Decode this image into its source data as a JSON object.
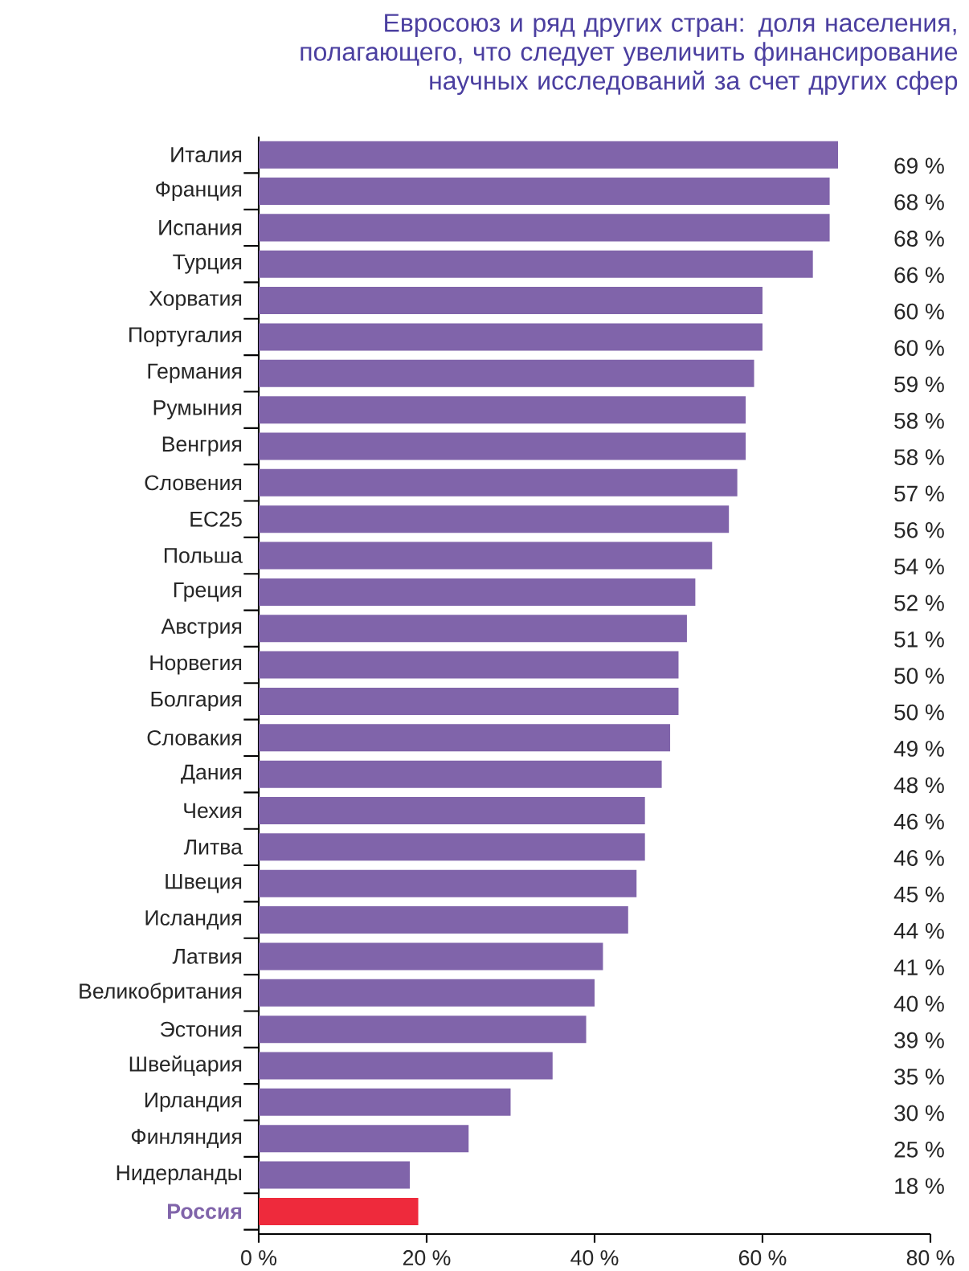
{
  "chart_data": {
    "type": "bar",
    "orientation": "horizontal",
    "title": "Евросоюз и ряд других стран: доля населения, полагающего, что следует увеличить финансирование научных исследований за счет других сфер",
    "categories": [
      "Италия",
      "Франция",
      "Испания",
      "Турция",
      "Хорватия",
      "Португалия",
      "Германия",
      "Румыния",
      "Венгрия",
      "Словения",
      "ЕС25",
      "Польша",
      "Греция",
      "Австрия",
      "Норвегия",
      "Болгария",
      "Словакия",
      "Дания",
      "Чехия",
      "Литва",
      "Швеция",
      "Исландия",
      "Латвия",
      "Великобритания",
      "Эстония",
      "Швейцария",
      "Ирландия",
      "Финляндия",
      "Нидерланды",
      "Россия"
    ],
    "values": [
      69,
      68,
      68,
      66,
      60,
      60,
      59,
      58,
      58,
      57,
      56,
      54,
      52,
      51,
      50,
      50,
      49,
      48,
      46,
      46,
      45,
      44,
      41,
      40,
      39,
      35,
      30,
      25,
      18,
      19
    ],
    "value_labels": [
      "69 %",
      "68 %",
      "68 %",
      "66 %",
      "60 %",
      "60 %",
      "59 %",
      "58 %",
      "58 %",
      "57 %",
      "56 %",
      "54 %",
      "52 %",
      "51 %",
      "50 %",
      "50 %",
      "49 %",
      "48 %",
      "46 %",
      "46 %",
      "45 %",
      "44 %",
      "41 %",
      "40 %",
      "39 %",
      "35 %",
      "30 %",
      "25 %",
      "18 %",
      null
    ],
    "colors": [
      "#8064aa",
      "#8064aa",
      "#8064aa",
      "#8064aa",
      "#8064aa",
      "#8064aa",
      "#8064aa",
      "#8064aa",
      "#8064aa",
      "#8064aa",
      "#8064aa",
      "#8064aa",
      "#8064aa",
      "#8064aa",
      "#8064aa",
      "#8064aa",
      "#8064aa",
      "#8064aa",
      "#8064aa",
      "#8064aa",
      "#8064aa",
      "#8064aa",
      "#8064aa",
      "#8064aa",
      "#8064aa",
      "#8064aa",
      "#8064aa",
      "#8064aa",
      "#8064aa",
      "#ee2a3c"
    ],
    "xlim": [
      0,
      80
    ],
    "xticks": [
      {
        "value": 0,
        "label": "0 %"
      },
      {
        "value": 20,
        "label": "20 %"
      },
      {
        "value": 40,
        "label": "40 %"
      },
      {
        "value": 60,
        "label": "60 %"
      },
      {
        "value": 80,
        "label": "80 %"
      }
    ],
    "data_labels": true
  }
}
